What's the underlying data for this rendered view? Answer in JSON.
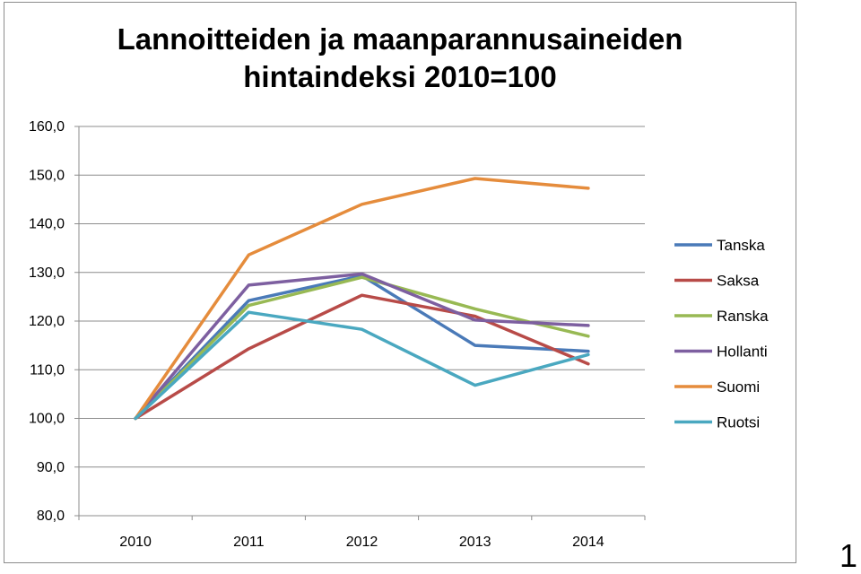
{
  "page_marker": "1",
  "chart_data": {
    "type": "line",
    "title_line1": "Lannoitteiden ja maanparannusaineiden",
    "title_line2": "hintaindeksi 2010=100",
    "x": [
      "2010",
      "2011",
      "2012",
      "2013",
      "2014"
    ],
    "ylim": [
      80,
      160
    ],
    "yticks": [
      "80,0",
      "90,0",
      "100,0",
      "110,0",
      "120,0",
      "130,0",
      "140,0",
      "150,0",
      "160,0"
    ],
    "ytick_values": [
      80,
      90,
      100,
      110,
      120,
      130,
      140,
      150,
      160
    ],
    "grid": true,
    "legend_position": "right",
    "series": [
      {
        "name": "Tanska",
        "color": "#4a7ab8",
        "values": [
          100,
          124.2,
          129.3,
          115.0,
          113.8
        ]
      },
      {
        "name": "Saksa",
        "color": "#b84b48",
        "values": [
          100,
          114.3,
          125.3,
          121.0,
          111.2
        ]
      },
      {
        "name": "Ranska",
        "color": "#98b954",
        "values": [
          100,
          123.2,
          129.0,
          122.5,
          116.9
        ]
      },
      {
        "name": "Hollanti",
        "color": "#7d5fa0",
        "values": [
          100,
          127.4,
          129.7,
          120.2,
          119.1
        ]
      },
      {
        "name": "Suomi",
        "color": "#e58c3c",
        "values": [
          100,
          133.6,
          144.0,
          149.3,
          147.3
        ]
      },
      {
        "name": "Ruotsi",
        "color": "#4aa8c0",
        "values": [
          100,
          121.8,
          118.3,
          106.8,
          113.1
        ]
      }
    ]
  }
}
